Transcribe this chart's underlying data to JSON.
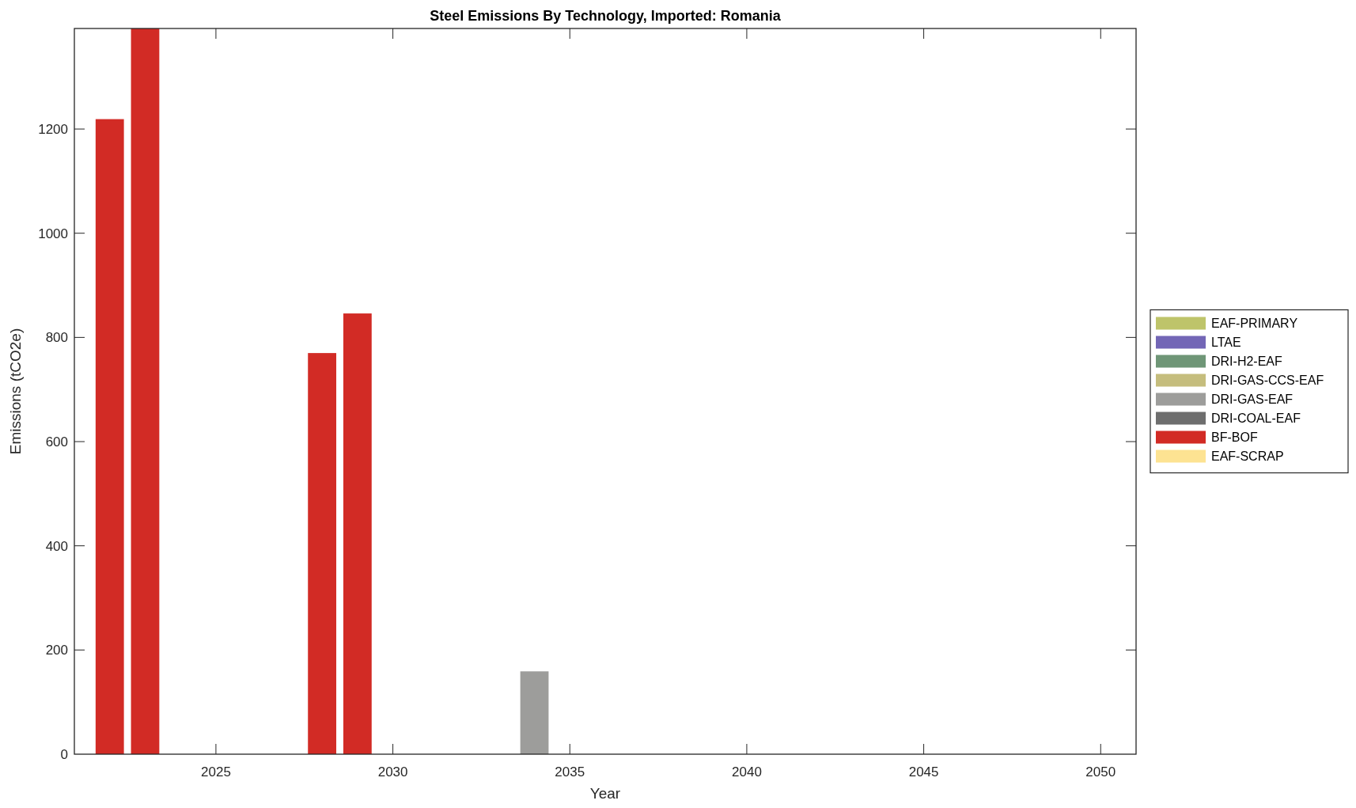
{
  "chart_data": {
    "type": "bar",
    "title": "Steel Emissions By Technology, Imported: Romania",
    "xlabel": "Year",
    "ylabel": "Emissions (tCO2e)",
    "x": [
      2022,
      2023,
      2028,
      2029,
      2034
    ],
    "series": [
      {
        "name": "EAF-PRIMARY",
        "color": "#bec46a",
        "values": [
          null,
          null,
          null,
          null,
          null
        ]
      },
      {
        "name": "LTAE",
        "color": "#7366b6",
        "values": [
          null,
          null,
          null,
          null,
          null
        ]
      },
      {
        "name": "DRI-H2-EAF",
        "color": "#6f9677",
        "values": [
          null,
          null,
          null,
          null,
          null
        ]
      },
      {
        "name": "DRI-GAS-CCS-EAF",
        "color": "#c5bd7d",
        "values": [
          null,
          null,
          null,
          null,
          null
        ]
      },
      {
        "name": "DRI-GAS-EAF",
        "color": "#9d9d9b",
        "values": [
          null,
          null,
          null,
          null,
          159
        ]
      },
      {
        "name": "DRI-COAL-EAF",
        "color": "#6e6e6e",
        "values": [
          null,
          null,
          null,
          null,
          null
        ]
      },
      {
        "name": "BF-BOF",
        "color": "#d22b25",
        "values": [
          1219,
          1393,
          770,
          846,
          null
        ]
      },
      {
        "name": "EAF-SCRAP",
        "color": "#fde392",
        "values": [
          null,
          null,
          null,
          null,
          null
        ]
      }
    ],
    "stacked": true,
    "xlim": [
      2021,
      2051
    ],
    "xticks": [
      2025,
      2030,
      2035,
      2040,
      2045,
      2050
    ],
    "ylim": [
      0,
      1393
    ],
    "yticks": [
      0,
      200,
      400,
      600,
      800,
      1000,
      1200
    ],
    "grid": false,
    "legend": "right"
  }
}
